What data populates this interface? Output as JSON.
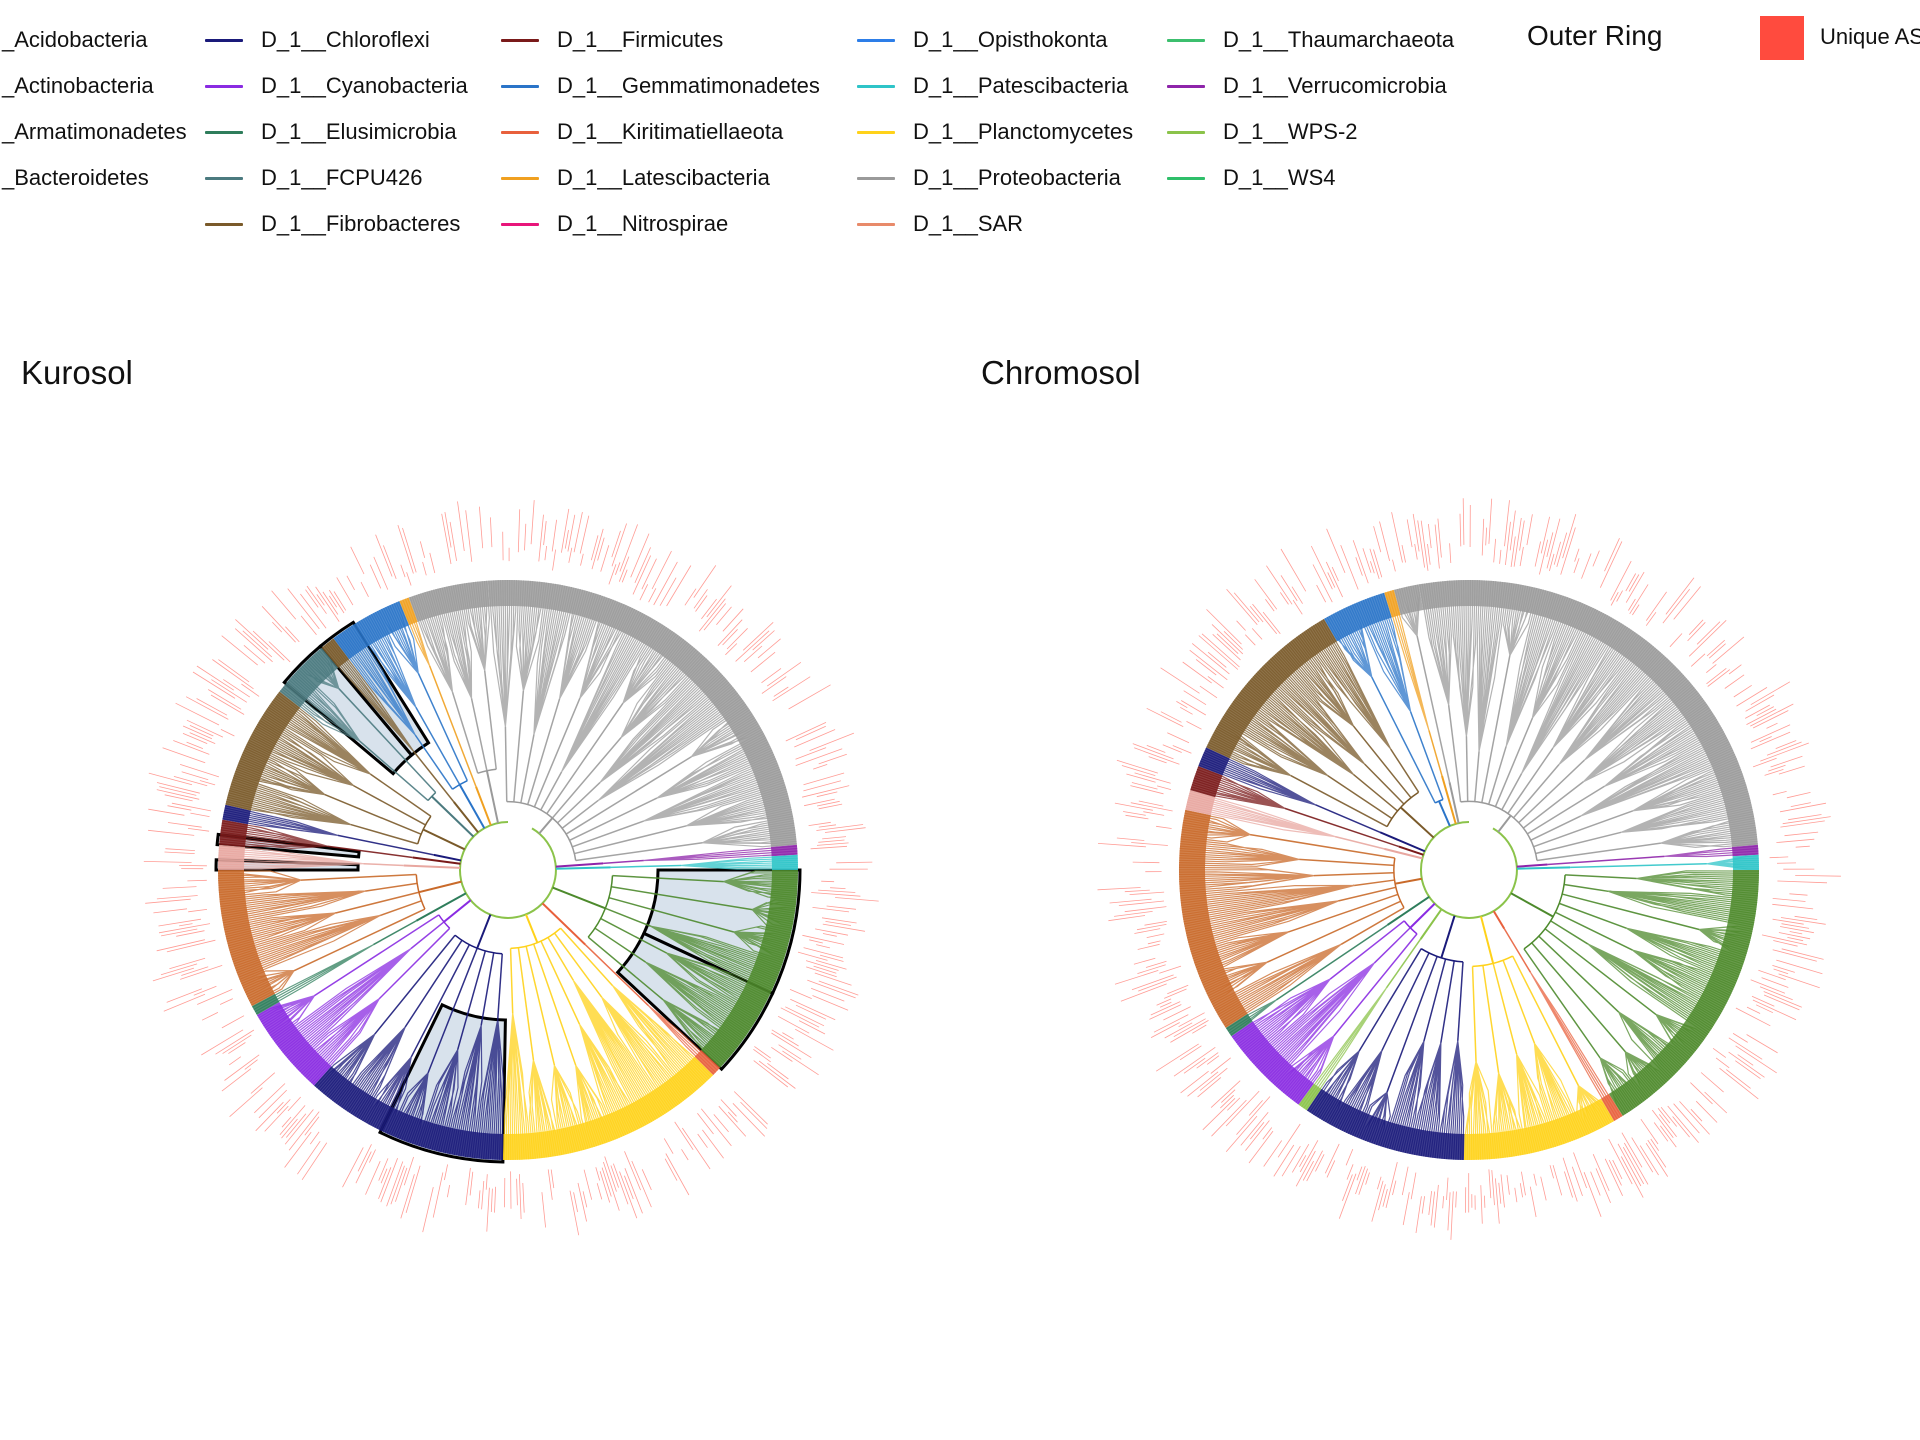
{
  "legend": {
    "columns": [
      [
        {
          "label": "_Acidobacteria",
          "color": "#E8A7A0"
        },
        {
          "label": "_Actinobacteria",
          "color": "#C96A2A"
        },
        {
          "label": "_Armatimonadetes",
          "color": "#777777"
        },
        {
          "label": "_Bacteroidetes",
          "color": "#4D8A2C"
        }
      ],
      [
        {
          "label": "D_1__Chloroflexi",
          "color": "#1A1A7A"
        },
        {
          "label": "D_1__Cyanobacteria",
          "color": "#8A2BE2"
        },
        {
          "label": "D_1__Elusimicrobia",
          "color": "#2E7D5B"
        },
        {
          "label": "D_1__FCPU426",
          "color": "#4B7A7F"
        },
        {
          "label": "D_1__Fibrobacteres",
          "color": "#7A5A2A"
        }
      ],
      [
        {
          "label": "D_1__Firmicutes",
          "color": "#7A1A1A"
        },
        {
          "label": "D_1__Gemmatimonadetes",
          "color": "#2A74C8"
        },
        {
          "label": "D_1__Kiritimatiellaeota",
          "color": "#E8603C"
        },
        {
          "label": "D_1__Latescibacteria",
          "color": "#F0A020"
        },
        {
          "label": "D_1__Nitrospirae",
          "color": "#E8157A"
        }
      ],
      [
        {
          "label": "D_1__Opisthokonta",
          "color": "#2D7EE8"
        },
        {
          "label": "D_1__Patescibacteria",
          "color": "#2EC4C8"
        },
        {
          "label": "D_1__Planctomycetes",
          "color": "#FFD21A"
        },
        {
          "label": "D_1__Proteobacteria",
          "color": "#9A9A9A"
        },
        {
          "label": "D_1__SAR",
          "color": "#E88A6A"
        }
      ],
      [
        {
          "label": "D_1__Thaumarchaeota",
          "color": "#3CBF6E"
        },
        {
          "label": "D_1__Verrucomicrobia",
          "color": "#8E24AA"
        },
        {
          "label": "D_1__WPS-2",
          "color": "#8BC34A"
        },
        {
          "label": "D_1__WS4",
          "color": "#2FBF6A"
        }
      ]
    ],
    "outer_ring_title": "Outer Ring",
    "unique_label": "Unique AS",
    "unique_color": "#FF4B3E"
  },
  "panels": [
    {
      "title": "Kurosol",
      "sectors": [
        {
          "phylum": "D_1__Proteobacteria",
          "start": -94,
          "end": -5,
          "color": "#9A9A9A"
        },
        {
          "phylum": "D_1__Verrucomicrobia",
          "start": -5,
          "end": -3,
          "color": "#8E24AA"
        },
        {
          "phylum": "D_1__Patescibacteria",
          "start": -3,
          "end": 0,
          "color": "#2EC4C8"
        },
        {
          "phylum": "_Bacteroidetes",
          "start": 0,
          "end": 43,
          "color": "#4D8A2C"
        },
        {
          "phylum": "D_1__Kiritimatiellaeota",
          "start": 43,
          "end": 45,
          "color": "#E8603C"
        },
        {
          "phylum": "D_1__Planctomycetes",
          "start": 45,
          "end": 91,
          "color": "#FFD21A"
        },
        {
          "phylum": "D_1__Chloroflexi",
          "start": 91,
          "end": 132,
          "color": "#1A1A7A"
        },
        {
          "phylum": "D_1__Cyanobacteria",
          "start": 132,
          "end": 150,
          "color": "#8A2BE2"
        },
        {
          "phylum": "D_1__Elusimicrobia",
          "start": 150,
          "end": 152,
          "color": "#2E7D5B"
        },
        {
          "phylum": "_Actinobacteria",
          "start": 152,
          "end": 180,
          "color": "#C96A2A"
        },
        {
          "phylum": "_Acidobacteria",
          "start": 180,
          "end": 185,
          "color": "#E8A7A0"
        },
        {
          "phylum": "D_1__Firmicutes",
          "start": 185,
          "end": 190,
          "color": "#7A1A1A"
        },
        {
          "phylum": "D_1__Chloroflexi",
          "start": 190,
          "end": 193,
          "color": "#1A1A7A"
        },
        {
          "phylum": "D_1__Fibrobacteres",
          "start": 193,
          "end": 218,
          "color": "#7A5A2A"
        },
        {
          "phylum": "D_1__FCPU426",
          "start": 218,
          "end": 230,
          "color": "#4B7A7F"
        },
        {
          "phylum": "D_1__Fibrobacteres",
          "start": 230,
          "end": 233,
          "color": "#7A5A2A"
        },
        {
          "phylum": "D_1__Gemmatimonadetes",
          "start": 233,
          "end": 248,
          "color": "#2A74C8"
        },
        {
          "phylum": "D_1__Latescibacteria",
          "start": 248,
          "end": 250,
          "color": "#F0A020"
        },
        {
          "phylum": "D_1__Proteobacteria",
          "start": 250,
          "end": 266,
          "color": "#9A9A9A"
        }
      ],
      "highlights": [
        [
          0,
          25
        ],
        [
          25,
          43
        ],
        [
          91,
          116
        ],
        [
          220,
          230
        ],
        [
          230,
          238
        ],
        [
          185,
          187
        ],
        [
          180,
          182
        ]
      ]
    },
    {
      "title": "Chromosol",
      "sectors": [
        {
          "phylum": "D_1__Proteobacteria",
          "start": -100,
          "end": -5,
          "color": "#9A9A9A"
        },
        {
          "phylum": "D_1__Verrucomicrobia",
          "start": -5,
          "end": -3,
          "color": "#8E24AA"
        },
        {
          "phylum": "D_1__Patescibacteria",
          "start": -3,
          "end": 0,
          "color": "#2EC4C8"
        },
        {
          "phylum": "_Bacteroidetes",
          "start": 0,
          "end": 58,
          "color": "#4D8A2C"
        },
        {
          "phylum": "D_1__Kiritimatiellaeota",
          "start": 58,
          "end": 60,
          "color": "#E8603C"
        },
        {
          "phylum": "D_1__Planctomycetes",
          "start": 60,
          "end": 91,
          "color": "#FFD21A"
        },
        {
          "phylum": "D_1__Chloroflexi",
          "start": 91,
          "end": 124,
          "color": "#1A1A7A"
        },
        {
          "phylum": "D_1__WPS-2",
          "start": 124,
          "end": 126,
          "color": "#8BC34A"
        },
        {
          "phylum": "D_1__Cyanobacteria",
          "start": 126,
          "end": 145,
          "color": "#8A2BE2"
        },
        {
          "phylum": "D_1__Elusimicrobia",
          "start": 145,
          "end": 147,
          "color": "#2E7D5B"
        },
        {
          "phylum": "_Actinobacteria",
          "start": 147,
          "end": 192,
          "color": "#C96A2A"
        },
        {
          "phylum": "_Acidobacteria",
          "start": 192,
          "end": 196,
          "color": "#E8A7A0"
        },
        {
          "phylum": "D_1__Firmicutes",
          "start": 196,
          "end": 201,
          "color": "#7A1A1A"
        },
        {
          "phylum": "D_1__Chloroflexi",
          "start": 201,
          "end": 205,
          "color": "#1A1A7A"
        },
        {
          "phylum": "D_1__Fibrobacteres",
          "start": 205,
          "end": 240,
          "color": "#7A5A2A"
        },
        {
          "phylum": "D_1__Gemmatimonadetes",
          "start": 240,
          "end": 253,
          "color": "#2A74C8"
        },
        {
          "phylum": "D_1__Latescibacteria",
          "start": 253,
          "end": 255,
          "color": "#F0A020"
        },
        {
          "phylum": "D_1__Proteobacteria",
          "start": 255,
          "end": 260,
          "color": "#9A9A9A"
        }
      ],
      "highlights": []
    }
  ]
}
